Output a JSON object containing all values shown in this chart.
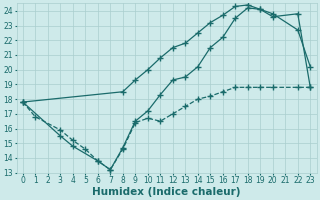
{
  "line1_dashed": {
    "x": [
      0,
      1,
      3,
      4,
      5,
      6,
      7,
      8,
      9,
      10,
      11,
      12,
      13,
      14,
      15,
      16,
      17,
      18,
      19,
      20,
      22,
      23
    ],
    "y": [
      17.8,
      16.8,
      15.9,
      15.2,
      14.6,
      13.8,
      13.2,
      14.6,
      16.4,
      16.7,
      16.5,
      17.0,
      17.5,
      18.0,
      18.2,
      18.5,
      18.8,
      18.8,
      18.8,
      18.8,
      18.8,
      18.8
    ],
    "color": "#1a6b6b",
    "marker": "+",
    "markersize": 4,
    "linewidth": 0.9,
    "linestyle": "--"
  },
  "line2_solid_lower": {
    "x": [
      0,
      3,
      4,
      6,
      7,
      8,
      9,
      10,
      11,
      12,
      13,
      14,
      15,
      16,
      17,
      18,
      19,
      20,
      22,
      23
    ],
    "y": [
      17.8,
      15.5,
      14.8,
      13.8,
      13.2,
      14.7,
      16.5,
      17.2,
      18.3,
      19.3,
      19.5,
      20.2,
      21.5,
      22.2,
      23.5,
      24.2,
      24.1,
      23.8,
      22.7,
      20.2
    ],
    "color": "#1a6b6b",
    "marker": "+",
    "markersize": 4,
    "linewidth": 0.9,
    "linestyle": "-"
  },
  "line3_solid_upper": {
    "x": [
      0,
      8,
      9,
      10,
      11,
      12,
      13,
      14,
      15,
      16,
      17,
      18,
      19,
      20,
      22,
      23
    ],
    "y": [
      17.8,
      18.5,
      19.3,
      20.0,
      20.8,
      21.5,
      21.8,
      22.5,
      23.2,
      23.7,
      24.3,
      24.4,
      24.1,
      23.6,
      23.8,
      18.8
    ],
    "color": "#1a6b6b",
    "marker": "+",
    "markersize": 4,
    "linewidth": 0.9,
    "linestyle": "-"
  },
  "xlabel": "Humidex (Indice chaleur)",
  "xlim": [
    -0.5,
    23.5
  ],
  "ylim": [
    13.0,
    24.5
  ],
  "yticks": [
    13,
    14,
    15,
    16,
    17,
    18,
    19,
    20,
    21,
    22,
    23,
    24
  ],
  "xticks": [
    0,
    1,
    2,
    3,
    4,
    5,
    6,
    7,
    8,
    9,
    10,
    11,
    12,
    13,
    14,
    15,
    16,
    17,
    18,
    19,
    20,
    21,
    22,
    23
  ],
  "bg_color": "#ceeaea",
  "grid_color": "#aacece",
  "line_color": "#1a6b6b",
  "tick_fontsize": 5.5,
  "xlabel_fontsize": 7.5
}
